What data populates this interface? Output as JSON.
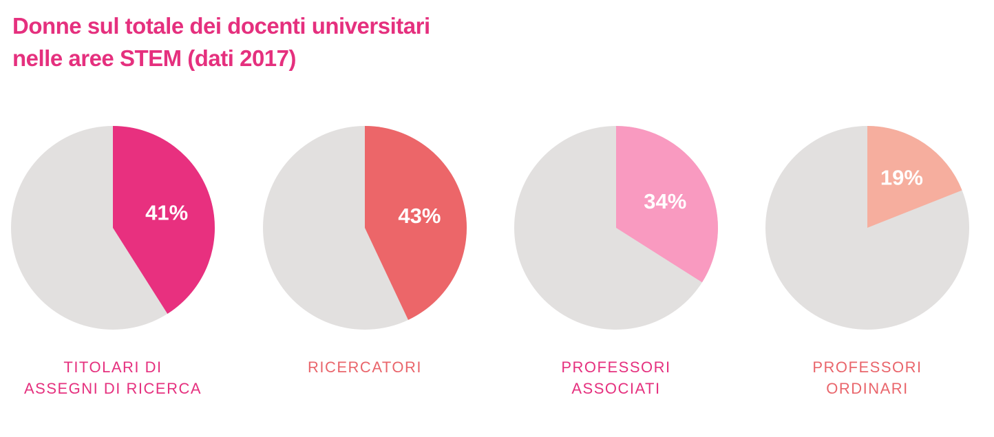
{
  "title_lines": [
    "Donne sul totale dei docenti universitari",
    "nelle aree STEM (dati 2017)"
  ],
  "colors": {
    "title": "#e5307e",
    "remainder": "#e2e0df",
    "value_text": "#ffffff"
  },
  "chart_data": [
    {
      "type": "pie",
      "category_lines": [
        "TITOLARI DI",
        "ASSEGNI DI RICERCA"
      ],
      "value": 41,
      "value_label": "41%",
      "color": "#e8307f",
      "label_color": "#e5307e"
    },
    {
      "type": "pie",
      "category_lines": [
        "RICERCATORI"
      ],
      "value": 43,
      "value_label": "43%",
      "color": "#ec6669",
      "label_color": "#e9656b"
    },
    {
      "type": "pie",
      "category_lines": [
        "PROFESSORI",
        "ASSOCIATI"
      ],
      "value": 34,
      "value_label": "34%",
      "color": "#f99ac0",
      "label_color": "#e5307e"
    },
    {
      "type": "pie",
      "category_lines": [
        "PROFESSORI",
        "ORDINARI"
      ],
      "value": 19,
      "value_label": "19%",
      "color": "#f6ae9e",
      "label_color": "#e9656b"
    }
  ]
}
